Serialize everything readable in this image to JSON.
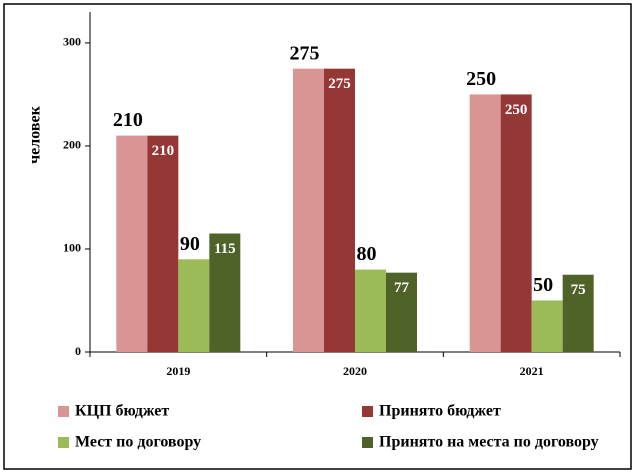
{
  "chart_data": {
    "type": "bar",
    "categories": [
      "2019",
      "2020",
      "2021"
    ],
    "y_label": "человек",
    "series": [
      {
        "name": "КЦП бюджет",
        "color": "#d99594",
        "values": [
          210,
          275,
          250
        ]
      },
      {
        "name": "Принято бюджет",
        "color": "#953735",
        "values": [
          210,
          275,
          250
        ]
      },
      {
        "name": "Мест по договору",
        "color": "#9bbb59",
        "values": [
          90,
          80,
          50
        ]
      },
      {
        "name": "Принято на места по договору",
        "color": "#4f6228",
        "values": [
          115,
          77,
          75
        ]
      }
    ],
    "ylim": [
      0,
      330
    ],
    "yticks": [
      0,
      100,
      200,
      300
    ],
    "grid": false,
    "legend": "bottom"
  }
}
